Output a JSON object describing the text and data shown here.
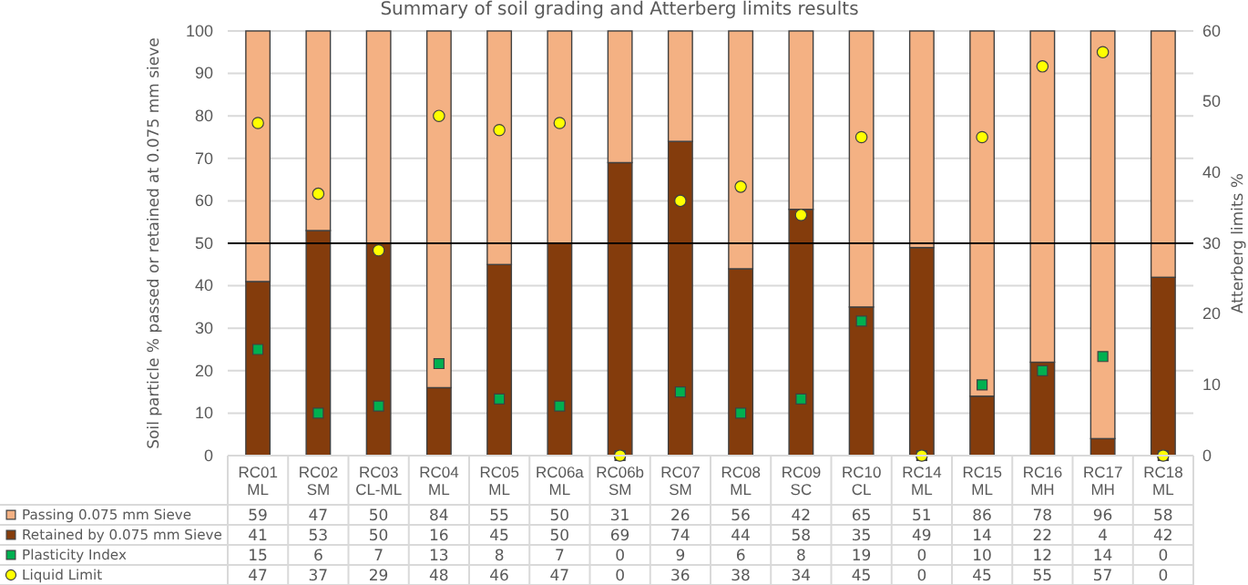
{
  "chart_data": {
    "type": "bar",
    "title": "Summary of soil grading and Atterberg limits results",
    "ylabel": "Soil particle % passed or retained at 0.075 mm sieve",
    "y2label": "Atterberg limits %",
    "categories": [
      "RC01\nML",
      "RC02\nSM",
      "RC03\nCL-ML",
      "RC04\nML",
      "RC05\nML",
      "RC06a\nML",
      "RC06b\nSM",
      "RC07\nSM",
      "RC08\nML",
      "RC09\nSC",
      "RC10\nCL",
      "RC14\nML",
      "RC15\nML",
      "RC16\nMH",
      "RC17\nMH",
      "RC18\nML"
    ],
    "stacked": true,
    "series": [
      {
        "name": "Retained by 0.075 mm Sieve",
        "color": "#843c0c",
        "values": [
          41,
          53,
          50,
          16,
          45,
          50,
          69,
          74,
          44,
          58,
          35,
          49,
          14,
          22,
          4,
          42
        ]
      },
      {
        "name": "Passing 0.075 mm Sieve",
        "color": "#f4b183",
        "values": [
          59,
          47,
          50,
          84,
          55,
          50,
          31,
          26,
          56,
          42,
          65,
          51,
          86,
          78,
          96,
          58
        ]
      },
      {
        "name": "Plasticity Index",
        "type": "scatter",
        "axis": "y2",
        "marker": "square",
        "color": "#00b050",
        "values": [
          15,
          6,
          7,
          13,
          8,
          7,
          0,
          9,
          6,
          8,
          19,
          0,
          10,
          12,
          14,
          0
        ]
      },
      {
        "name": "Liquid Limit",
        "type": "scatter",
        "axis": "y2",
        "marker": "circle",
        "color": "#ffff00",
        "values": [
          47,
          37,
          29,
          48,
          46,
          47,
          0,
          36,
          38,
          34,
          45,
          0,
          45,
          55,
          57,
          0
        ]
      }
    ],
    "ylim": [
      0,
      100
    ],
    "yticks": [
      0,
      10,
      20,
      30,
      40,
      50,
      60,
      70,
      80,
      90,
      100
    ],
    "y2lim": [
      0,
      60
    ],
    "y2ticks": [
      0,
      10,
      20,
      30,
      40,
      50,
      60
    ],
    "ref_lines": [
      {
        "axis": "y",
        "value": 50,
        "color": "#000000"
      }
    ],
    "grid": "y",
    "legend": "bottom",
    "data_labels": true
  }
}
